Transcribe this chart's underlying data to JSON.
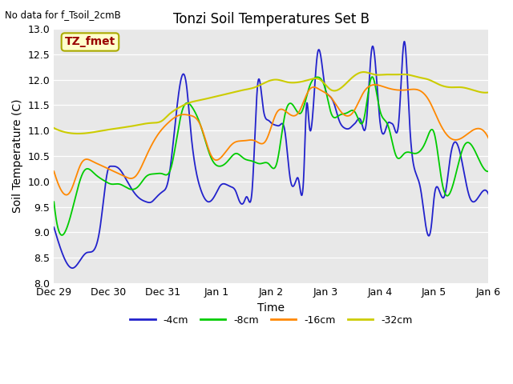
{
  "title": "Tonzi Soil Temperatures Set B",
  "no_data_label": "No data for f_Tsoil_2cmB",
  "legend_box_label": "TZ_fmet",
  "xlabel": "Time",
  "ylabel": "Soil Temperature (C)",
  "ylim": [
    8.0,
    13.0
  ],
  "yticks": [
    8.0,
    8.5,
    9.0,
    9.5,
    10.0,
    10.5,
    11.0,
    11.5,
    12.0,
    12.5,
    13.0
  ],
  "xtick_labels": [
    "Dec 29",
    "Dec 30",
    "Dec 31",
    "Jan 1",
    "Jan 2",
    "Jan 3",
    "Jan 4",
    "Jan 5",
    "Jan 6"
  ],
  "line_colors": [
    "#2222cc",
    "#00cc00",
    "#ff8800",
    "#cccc00"
  ],
  "legend_labels": [
    "-4cm",
    "-8cm",
    "-16cm",
    "-32cm"
  ],
  "fig_bg": "#ffffff",
  "ax_bg": "#e8e8e8",
  "grid_color": "#ffffff",
  "title_fontsize": 12,
  "label_fontsize": 9,
  "legend_fontsize": 9,
  "blue_x": [
    0.0,
    0.15,
    0.35,
    0.6,
    0.85,
    1.0,
    1.05,
    1.1,
    1.2,
    1.35,
    1.5,
    1.6,
    1.7,
    1.8,
    1.85,
    2.0,
    2.1,
    2.35,
    2.45,
    2.5,
    2.6,
    2.7,
    2.85,
    3.0,
    3.05,
    3.1,
    3.15,
    3.25,
    3.35,
    3.4,
    3.5,
    3.55,
    3.65,
    3.75,
    3.85,
    3.95,
    4.0,
    4.1,
    4.15,
    4.25,
    4.35,
    4.45,
    4.5,
    4.6,
    4.65,
    4.7,
    4.85,
    5.0,
    5.05,
    5.1,
    5.15,
    5.25,
    5.35,
    5.45,
    5.5,
    5.55,
    5.65,
    5.75,
    5.85,
    5.9,
    6.0,
    6.1,
    6.15,
    6.2,
    6.25,
    6.35,
    6.45,
    6.5,
    6.55,
    6.65,
    6.75,
    6.85,
    6.95,
    7.0,
    7.1,
    7.2,
    7.3,
    7.5,
    7.65,
    7.85,
    8.0
  ],
  "blue_y": [
    9.1,
    8.6,
    8.3,
    8.6,
    9.1,
    10.25,
    10.3,
    10.3,
    10.25,
    10.0,
    9.75,
    9.65,
    9.6,
    9.6,
    9.65,
    9.8,
    10.0,
    12.05,
    11.8,
    11.2,
    10.3,
    9.85,
    9.6,
    9.8,
    9.9,
    9.95,
    9.95,
    9.9,
    9.8,
    9.65,
    9.6,
    9.7,
    9.85,
    11.9,
    11.45,
    11.2,
    11.15,
    11.1,
    11.1,
    11.0,
    10.05,
    10.0,
    10.05,
    10.15,
    11.5,
    11.1,
    12.5,
    11.8,
    11.7,
    11.65,
    11.55,
    11.2,
    11.05,
    11.05,
    11.1,
    11.15,
    11.2,
    11.15,
    12.6,
    12.5,
    11.2,
    11.0,
    11.15,
    11.15,
    11.1,
    11.2,
    12.75,
    12.15,
    11.1,
    10.2,
    9.85,
    9.1,
    9.15,
    9.7,
    9.8,
    9.75,
    10.5,
    10.45,
    9.7,
    9.75,
    9.75
  ],
  "green_x": [
    0.0,
    0.1,
    0.2,
    0.35,
    0.55,
    0.75,
    0.95,
    1.05,
    1.2,
    1.4,
    1.55,
    1.7,
    1.85,
    2.0,
    2.15,
    2.35,
    2.55,
    2.7,
    2.9,
    3.05,
    3.2,
    3.35,
    3.5,
    3.65,
    3.8,
    3.95,
    4.1,
    4.25,
    4.4,
    4.55,
    4.7,
    4.85,
    5.0,
    5.1,
    5.25,
    5.4,
    5.55,
    5.7,
    5.85,
    6.0,
    6.15,
    6.3,
    6.45,
    6.65,
    6.85,
    7.0,
    7.15,
    7.35,
    7.55,
    7.75,
    8.0
  ],
  "green_y": [
    9.6,
    9.0,
    9.0,
    9.5,
    10.2,
    10.15,
    10.0,
    9.95,
    9.95,
    9.85,
    9.9,
    10.1,
    10.15,
    10.15,
    10.25,
    11.35,
    11.45,
    11.1,
    10.45,
    10.3,
    10.4,
    10.55,
    10.45,
    10.4,
    10.35,
    10.35,
    10.35,
    11.3,
    11.5,
    11.35,
    11.85,
    12.05,
    11.8,
    11.35,
    11.3,
    11.35,
    11.35,
    11.2,
    12.05,
    11.4,
    11.1,
    10.5,
    10.55,
    10.55,
    10.8,
    10.95,
    9.95,
    9.95,
    10.7,
    10.6,
    10.2
  ],
  "orange_x": [
    0.0,
    0.15,
    0.3,
    0.5,
    0.7,
    0.9,
    1.1,
    1.3,
    1.5,
    1.7,
    1.9,
    2.1,
    2.3,
    2.5,
    2.7,
    2.9,
    3.1,
    3.3,
    3.5,
    3.7,
    3.9,
    4.1,
    4.3,
    4.5,
    4.7,
    4.9,
    5.1,
    5.3,
    5.5,
    5.7,
    5.9,
    6.1,
    6.3,
    6.5,
    6.7,
    6.9,
    7.1,
    7.3,
    7.5,
    7.7,
    8.0
  ],
  "orange_y": [
    10.2,
    9.8,
    9.8,
    10.35,
    10.4,
    10.3,
    10.2,
    10.1,
    10.1,
    10.5,
    10.9,
    11.15,
    11.3,
    11.3,
    11.1,
    10.5,
    10.5,
    10.75,
    10.8,
    10.8,
    10.8,
    11.35,
    11.35,
    11.35,
    11.8,
    11.8,
    11.65,
    11.35,
    11.35,
    11.75,
    11.9,
    11.85,
    11.8,
    11.8,
    11.8,
    11.6,
    11.15,
    10.85,
    10.85,
    11.0,
    10.85
  ],
  "yellow_x": [
    0.0,
    0.3,
    0.6,
    0.9,
    1.2,
    1.5,
    1.8,
    2.0,
    2.1,
    2.3,
    2.5,
    2.7,
    2.9,
    3.1,
    3.3,
    3.5,
    3.7,
    3.9,
    4.1,
    4.3,
    4.5,
    4.7,
    4.9,
    5.1,
    5.3,
    5.5,
    5.7,
    5.9,
    6.1,
    6.3,
    6.5,
    6.7,
    6.9,
    7.1,
    7.3,
    7.5,
    7.7,
    8.0
  ],
  "yellow_y": [
    11.05,
    10.95,
    10.95,
    11.0,
    11.05,
    11.1,
    11.15,
    11.2,
    11.3,
    11.45,
    11.55,
    11.6,
    11.65,
    11.7,
    11.75,
    11.8,
    11.85,
    11.95,
    12.0,
    11.95,
    11.95,
    12.0,
    12.0,
    11.8,
    11.85,
    12.05,
    12.15,
    12.1,
    12.1,
    12.1,
    12.1,
    12.05,
    12.0,
    11.9,
    11.85,
    11.85,
    11.8,
    11.75
  ]
}
